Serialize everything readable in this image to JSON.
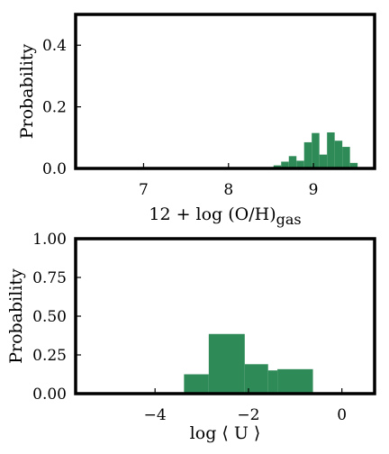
{
  "colors": {
    "bar": "#2e8b57",
    "frame": "#000000"
  },
  "chart_data": [
    {
      "type": "bar",
      "ylabel": "Probability",
      "xlabel_main": "12 + log (O/H)",
      "xlabel_sub": "gas",
      "xlim": [
        6.2,
        9.72
      ],
      "ylim": [
        0,
        0.5
      ],
      "xticks": [
        7,
        8,
        9
      ],
      "xtick_labels": [
        "7",
        "8",
        "9"
      ],
      "yticks": [
        0.0,
        0.2,
        0.4
      ],
      "ytick_labels": [
        "0.0",
        "0.2",
        "0.4"
      ],
      "bins": [
        {
          "x0": 8.53,
          "x1": 8.62,
          "value": 0.01
        },
        {
          "x0": 8.62,
          "x1": 8.71,
          "value": 0.022
        },
        {
          "x0": 8.71,
          "x1": 8.8,
          "value": 0.04
        },
        {
          "x0": 8.8,
          "x1": 8.89,
          "value": 0.025
        },
        {
          "x0": 8.89,
          "x1": 8.98,
          "value": 0.085
        },
        {
          "x0": 8.98,
          "x1": 9.07,
          "value": 0.115
        },
        {
          "x0": 9.07,
          "x1": 9.16,
          "value": 0.045
        },
        {
          "x0": 9.16,
          "x1": 9.25,
          "value": 0.117
        },
        {
          "x0": 9.25,
          "x1": 9.34,
          "value": 0.09
        },
        {
          "x0": 9.34,
          "x1": 9.43,
          "value": 0.07
        },
        {
          "x0": 9.43,
          "x1": 9.52,
          "value": 0.018
        }
      ]
    },
    {
      "type": "bar",
      "ylabel": "Probability",
      "xlabel_main": "log ⟨ U ⟩",
      "xlim": [
        -5.7,
        0.7
      ],
      "ylim": [
        0,
        1.0
      ],
      "xticks": [
        -4,
        -2,
        0
      ],
      "xtick_labels": [
        "−4",
        "−2",
        "0"
      ],
      "yticks": [
        0.0,
        0.25,
        0.5,
        0.75,
        1.0
      ],
      "ytick_labels": [
        "0.00",
        "0.25",
        "0.50",
        "0.75",
        "1.00"
      ],
      "bins": [
        {
          "x0": -3.38,
          "x1": -2.85,
          "value": 0.125
        },
        {
          "x0": -2.85,
          "x1": -2.08,
          "value": 0.385
        },
        {
          "x0": -2.08,
          "x1": -1.58,
          "value": 0.19
        },
        {
          "x0": -1.58,
          "x1": -1.38,
          "value": 0.15
        },
        {
          "x0": -1.38,
          "x1": -0.62,
          "value": 0.158
        }
      ]
    }
  ]
}
